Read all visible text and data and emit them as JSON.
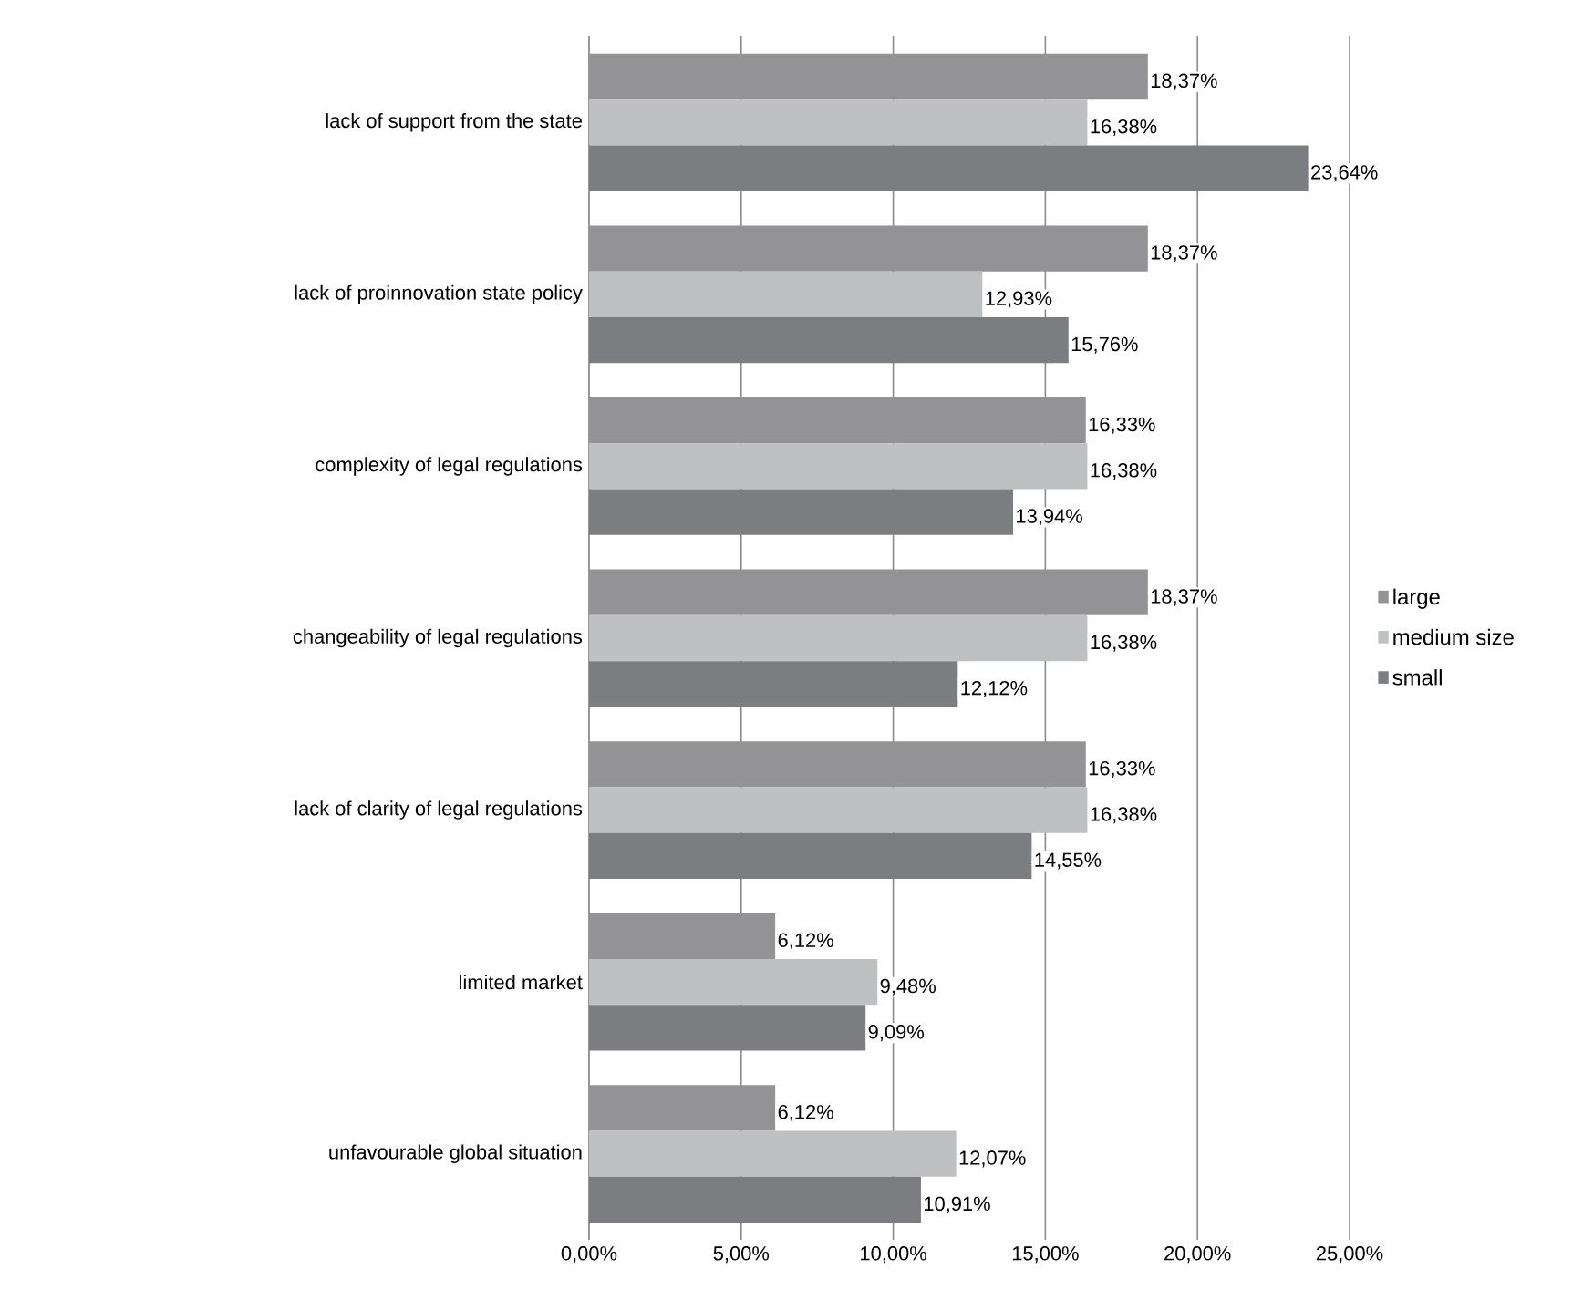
{
  "chart_data": {
    "type": "bar",
    "orientation": "horizontal",
    "categories": [
      "lack of support from the state",
      "lack of proinnovation state policy",
      "complexity of legal regulations",
      "changeability of legal regulations",
      "lack of clarity of legal regulations",
      "limited market",
      "unfavourable global situation"
    ],
    "series": [
      {
        "name": "large",
        "color": "#939395",
        "values": [
          18.37,
          18.37,
          16.33,
          18.37,
          16.33,
          6.12,
          6.12
        ],
        "value_labels": [
          "18,37%",
          "18,37%",
          "16,33%",
          "18,37%",
          "16,33%",
          "6,12%",
          "6,12%"
        ]
      },
      {
        "name": "medium size",
        "color": "#bfc0c2",
        "values": [
          16.38,
          12.93,
          16.38,
          16.38,
          16.38,
          9.48,
          12.07
        ],
        "value_labels": [
          "16,38%",
          "12,93%",
          "16,38%",
          "16,38%",
          "16,38%",
          "9,48%",
          "12,07%"
        ]
      },
      {
        "name": "small",
        "color": "#7c7d80",
        "values": [
          23.64,
          15.76,
          13.94,
          12.12,
          14.55,
          9.09,
          10.91
        ],
        "value_labels": [
          "23,64%",
          "15,76%",
          "13,94%",
          "12,12%",
          "14,55%",
          "9,09%",
          "10,91%"
        ]
      }
    ],
    "xlim": [
      0,
      25
    ],
    "xticks": [
      {
        "value": 0,
        "label": "0,00%"
      },
      {
        "value": 5,
        "label": "5,00%"
      },
      {
        "value": 10,
        "label": "10,00%"
      },
      {
        "value": 15,
        "label": "15,00%"
      },
      {
        "value": 20,
        "label": "20,00%"
      },
      {
        "value": 25,
        "label": "25,00%"
      }
    ],
    "grid": "x",
    "legend": "right"
  }
}
